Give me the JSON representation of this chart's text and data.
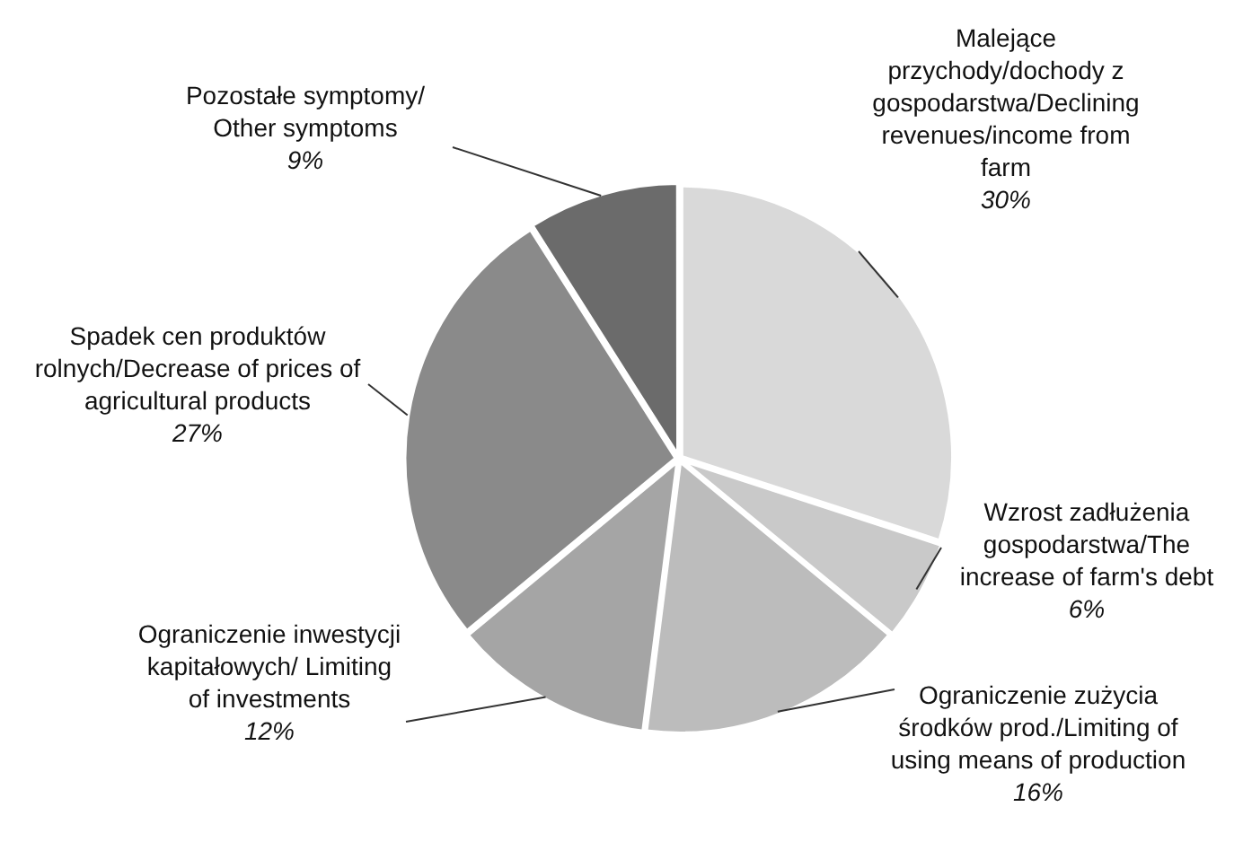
{
  "chart_data": {
    "type": "pie",
    "categories": [
      "Malejące przychody/dochody z gospodarstwa/Declining revenues/income from farm",
      "Wzrost zadłużenia gospodarstwa/The increase of farm's debt",
      "Ograniczenie zużycia środków prod./Limiting of using means of production",
      "Ograniczenie inwestycji kapitałowych/ Limiting of investments",
      "Spadek cen produktów rolnych/Decrease of prices of agricultural products",
      "Pozostałe symptomy/ Other symptoms"
    ],
    "values": [
      30,
      6,
      16,
      12,
      27,
      9
    ],
    "value_labels": [
      "30%",
      "6%",
      "16%",
      "12%",
      "27%",
      "9%"
    ],
    "colors": [
      "#d9d9d9",
      "#c9c9c9",
      "#bcbcbc",
      "#a5a5a5",
      "#8a8a8a",
      "#6b6b6b"
    ],
    "legend": false
  }
}
